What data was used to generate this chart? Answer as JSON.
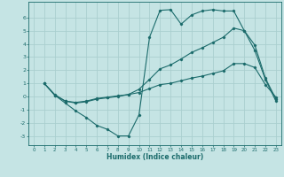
{
  "xlabel": "Humidex (Indice chaleur)",
  "xlim": [
    -0.5,
    23.5
  ],
  "ylim": [
    -3.7,
    7.2
  ],
  "yticks": [
    -3,
    -2,
    -1,
    0,
    1,
    2,
    3,
    4,
    5,
    6
  ],
  "xticks": [
    0,
    1,
    2,
    3,
    4,
    5,
    6,
    7,
    8,
    9,
    10,
    11,
    12,
    13,
    14,
    15,
    16,
    17,
    18,
    19,
    20,
    21,
    22,
    23
  ],
  "bg_color": "#c5e4e4",
  "line_color": "#1b6b6b",
  "grid_color": "#aacfcf",
  "line1_x": [
    1,
    2,
    3,
    4,
    5,
    6,
    7,
    8,
    9,
    10,
    11,
    12,
    13,
    14,
    15,
    16,
    17,
    18,
    19,
    20,
    21,
    22,
    23
  ],
  "line1_y": [
    1.0,
    0.1,
    -0.5,
    -1.1,
    -1.6,
    -2.2,
    -2.5,
    -3.0,
    -3.0,
    -1.4,
    4.5,
    6.55,
    6.6,
    5.5,
    6.2,
    6.5,
    6.6,
    6.5,
    6.5,
    5.0,
    3.5,
    1.3,
    -0.35
  ],
  "line2_x": [
    1,
    2,
    3,
    4,
    5,
    6,
    7,
    8,
    9,
    10,
    11,
    12,
    13,
    14,
    15,
    16,
    17,
    18,
    19,
    20,
    21,
    22,
    23
  ],
  "line2_y": [
    1.0,
    0.1,
    -0.35,
    -0.5,
    -0.4,
    -0.2,
    -0.1,
    0.0,
    0.15,
    0.55,
    1.3,
    2.1,
    2.4,
    2.85,
    3.35,
    3.7,
    4.1,
    4.5,
    5.2,
    5.0,
    3.9,
    1.4,
    -0.2
  ],
  "line3_x": [
    1,
    2,
    3,
    4,
    5,
    6,
    7,
    8,
    9,
    10,
    11,
    12,
    13,
    14,
    15,
    16,
    17,
    18,
    19,
    20,
    21,
    22,
    23
  ],
  "line3_y": [
    1.0,
    0.15,
    -0.35,
    -0.45,
    -0.35,
    -0.15,
    -0.05,
    0.05,
    0.15,
    0.3,
    0.6,
    0.9,
    1.0,
    1.2,
    1.4,
    1.55,
    1.75,
    1.95,
    2.5,
    2.5,
    2.2,
    0.9,
    -0.05
  ]
}
